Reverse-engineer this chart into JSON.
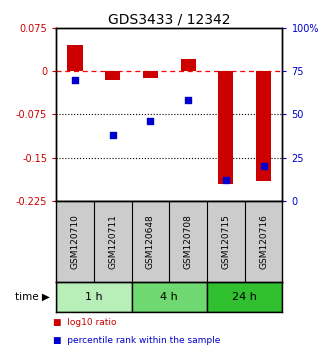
{
  "title": "GDS3433 / 12342",
  "samples": [
    "GSM120710",
    "GSM120711",
    "GSM120648",
    "GSM120708",
    "GSM120715",
    "GSM120716"
  ],
  "log10_ratio": [
    0.045,
    -0.015,
    -0.013,
    0.02,
    -0.195,
    -0.19
  ],
  "percentile_rank": [
    70,
    38,
    46,
    58,
    12,
    20
  ],
  "ylim_left": [
    -0.225,
    0.075
  ],
  "ylim_right": [
    0,
    100
  ],
  "yticks_left": [
    0.075,
    0,
    -0.075,
    -0.15,
    -0.225
  ],
  "yticks_right": [
    100,
    75,
    50,
    25,
    0
  ],
  "hlines_dotted": [
    -0.075,
    -0.15
  ],
  "hline_dashed": 0,
  "time_groups": [
    {
      "label": "1 h",
      "start": 0,
      "end": 2,
      "color": "#b8eeb8"
    },
    {
      "label": "4 h",
      "start": 2,
      "end": 4,
      "color": "#70d870"
    },
    {
      "label": "24 h",
      "start": 4,
      "end": 6,
      "color": "#30c030"
    }
  ],
  "bar_color": "#cc0000",
  "square_color": "#0000cc",
  "bar_width": 0.4,
  "square_size": 25,
  "legend_items": [
    {
      "label": "log10 ratio",
      "color": "#cc0000"
    },
    {
      "label": "percentile rank within the sample",
      "color": "#0000cc"
    }
  ],
  "left_tick_color": "#cc0000",
  "right_tick_color": "#0000cc",
  "title_fontsize": 10,
  "tick_fontsize": 7,
  "time_label_fontsize": 8,
  "sample_label_fontsize": 6.5,
  "legend_fontsize": 6.5,
  "background_color": "#ffffff",
  "sample_bg_color": "#cccccc",
  "spine_linewidth": 1.0
}
